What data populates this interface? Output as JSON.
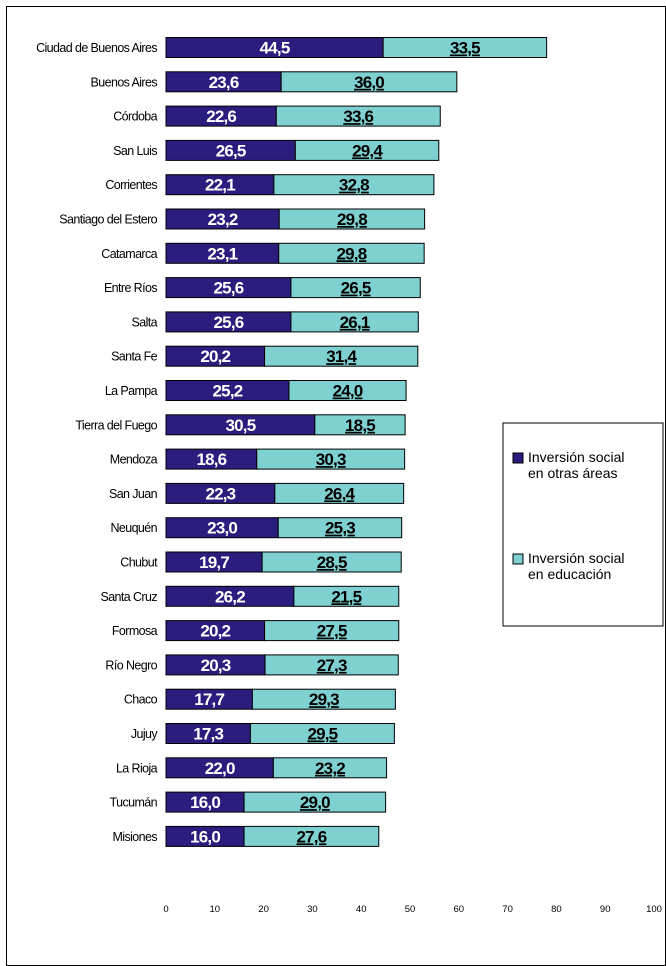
{
  "chart_data": {
    "type": "bar",
    "orientation": "horizontal",
    "stacked": true,
    "categories": [
      "Ciudad de Buenos Aires",
      "Buenos Aires",
      "Córdoba",
      "San Luis",
      "Corrientes",
      "Santiago del Estero",
      "Catamarca",
      "Entre Ríos",
      "Salta",
      "Santa Fe",
      "La Pampa",
      "Tierra del Fuego",
      "Mendoza",
      "San Juan",
      "Neuquén",
      "Chubut",
      "Santa Cruz",
      "Formosa",
      "Río Negro",
      "Chaco",
      "Jujuy",
      "La Rioja",
      "Tucumán",
      "Misiones"
    ],
    "series": [
      {
        "name": "Inversión social en otras áreas",
        "color": "#2b1d7e",
        "values": [
          44.5,
          23.6,
          22.6,
          26.5,
          22.1,
          23.2,
          23.1,
          25.6,
          25.6,
          20.2,
          25.2,
          30.5,
          18.6,
          22.3,
          23.0,
          19.7,
          26.2,
          20.2,
          20.3,
          17.7,
          17.3,
          22.0,
          16.0,
          16.0
        ],
        "labels": [
          "44,5",
          "23,6",
          "22,6",
          "26,5",
          "22,1",
          "23,2",
          "23,1",
          "25,6",
          "25,6",
          "20,2",
          "25,2",
          "30,5",
          "18,6",
          "22,3",
          "23,0",
          "19,7",
          "26,2",
          "20,2",
          "20,3",
          "17,7",
          "17,3",
          "22,0",
          "16,0",
          "16,0"
        ]
      },
      {
        "name": "Inversión social en educación",
        "color": "#7fd0d0",
        "values": [
          33.5,
          36.0,
          33.6,
          29.4,
          32.8,
          29.8,
          29.8,
          26.5,
          26.1,
          31.4,
          24.0,
          18.5,
          30.3,
          26.4,
          25.3,
          28.5,
          21.5,
          27.5,
          27.3,
          29.3,
          29.5,
          23.2,
          29.0,
          27.6
        ],
        "labels": [
          "33,5",
          "36,0",
          "33,6",
          "29,4",
          "32,8",
          "29,8",
          "29,8",
          "26,5",
          "26,1",
          "31,4",
          "24,0",
          "18,5",
          "30,3",
          "26,4",
          "25,3",
          "28,5",
          "21,5",
          "27,5",
          "27,3",
          "29,3",
          "29,5",
          "23,2",
          "29,0",
          "27,6"
        ]
      }
    ],
    "x_ticks": [
      "0",
      "10",
      "20",
      "30",
      "40",
      "50",
      "60",
      "70",
      "80",
      "90",
      "100"
    ],
    "xlim": [
      0,
      100
    ],
    "grid": false,
    "legend": {
      "position": "right",
      "items": [
        {
          "line1": "Inversión social",
          "line2": "en otras áreas",
          "color": "#2b1d7e"
        },
        {
          "line1": "Inversión social",
          "line2": "en educación",
          "color": "#7fd0d0"
        }
      ]
    }
  }
}
